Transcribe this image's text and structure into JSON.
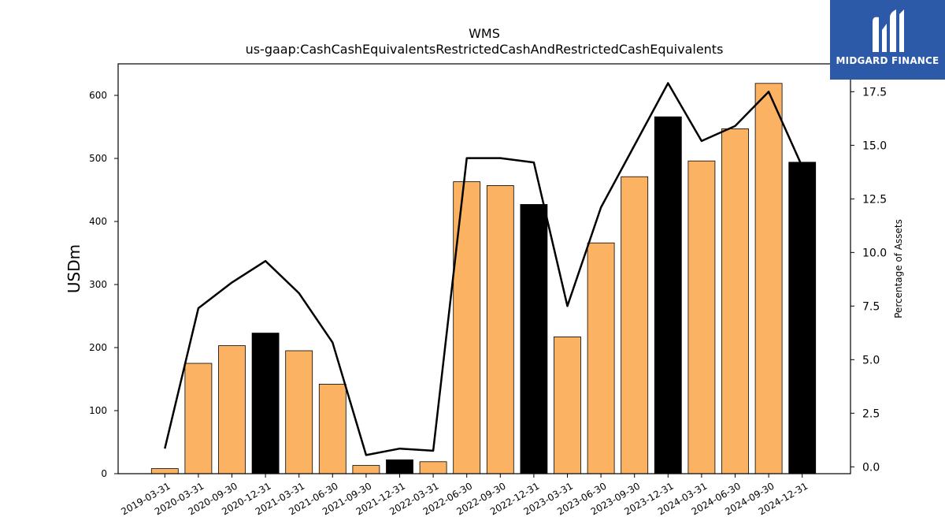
{
  "chart_data": {
    "type": "bar",
    "title": "WMS",
    "subtitle": "us-gaap:CashCashEquivalentsRestrictedCashAndRestrictedCashEquivalents",
    "ylabel": "USDm",
    "ylabel_right": "Percentage of Assets",
    "categories": [
      "2019-03-31",
      "2020-03-31",
      "2020-09-30",
      "2020-12-31",
      "2021-03-31",
      "2021-06-30",
      "2021-09-30",
      "2021-12-31",
      "2022-03-31",
      "2022-06-30",
      "2022-09-30",
      "2022-12-31",
      "2023-03-31",
      "2023-06-30",
      "2023-09-30",
      "2023-12-31",
      "2024-03-31",
      "2024-06-30",
      "2024-09-30",
      "2024-12-31"
    ],
    "values": [
      8,
      175,
      203,
      223,
      195,
      142,
      13,
      22,
      19,
      463,
      457,
      427,
      217,
      366,
      471,
      566,
      496,
      547,
      619,
      494
    ],
    "bar_colors": [
      "#fbb363",
      "#fbb363",
      "#fbb363",
      "#000000",
      "#fbb363",
      "#fbb363",
      "#fbb363",
      "#000000",
      "#fbb363",
      "#fbb363",
      "#fbb363",
      "#000000",
      "#fbb363",
      "#fbb363",
      "#fbb363",
      "#000000",
      "#fbb363",
      "#fbb363",
      "#fbb363",
      "#000000"
    ],
    "line_values": [
      0.85,
      7.4,
      8.6,
      9.6,
      8.1,
      5.8,
      0.55,
      0.85,
      0.75,
      14.4,
      14.4,
      14.2,
      7.5,
      12.1,
      15.0,
      17.9,
      15.2,
      15.9,
      17.5,
      14.0
    ],
    "ylim": [
      0,
      650
    ],
    "ylim_right": [
      -0.32,
      18.8
    ],
    "yticks": [
      0,
      100,
      200,
      300,
      400,
      500,
      600
    ],
    "yticks_right": [
      0.0,
      2.5,
      5.0,
      7.5,
      10.0,
      12.5,
      15.0,
      17.5
    ],
    "grid": false,
    "legend": "none"
  },
  "logo": {
    "text": "MIDGARD FINANCE",
    "bg_color": "#2d5aa8"
  }
}
